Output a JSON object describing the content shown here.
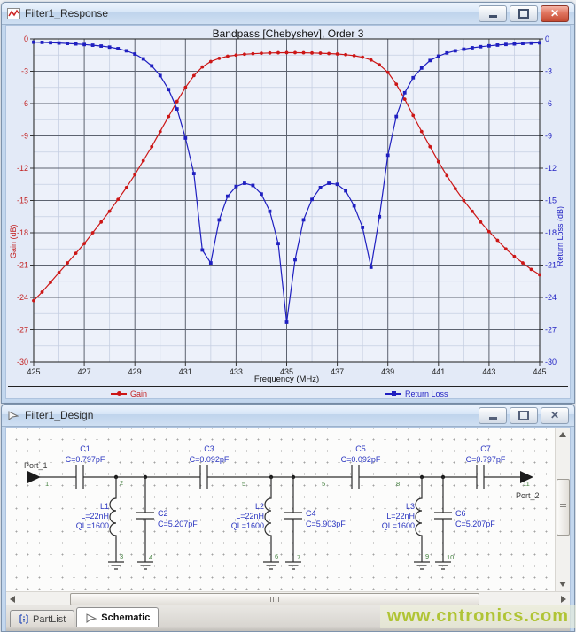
{
  "response_window": {
    "title": "Filter1_Response",
    "icon": "line-chart-icon"
  },
  "design_window": {
    "title": "Filter1_Design",
    "icon": "cursor-arrow-icon",
    "tabs": [
      {
        "label": "PartList",
        "icon": "list-icon",
        "active": false
      },
      {
        "label": "Schematic",
        "icon": "cursor-arrow-icon",
        "active": true
      }
    ],
    "parts": {
      "port1": {
        "label": "Port_1"
      },
      "port2": {
        "label": "Port_2"
      },
      "C1": {
        "ref": "C1",
        "value": "C=0.797pF"
      },
      "C3": {
        "ref": "C3",
        "value": "C=0.092pF"
      },
      "C5": {
        "ref": "C5",
        "value": "C=0.092pF"
      },
      "C7": {
        "ref": "C7",
        "value": "C=0.797pF"
      },
      "L1": {
        "ref": "L1",
        "l": "L=22nH",
        "ql": "QL=1600"
      },
      "L2": {
        "ref": "L2",
        "l": "L=22nH",
        "ql": "QL=1600"
      },
      "L3": {
        "ref": "L3",
        "l": "L=22nH",
        "ql": "QL=1600"
      },
      "C2": {
        "ref": "C2",
        "value": "C=5.207pF"
      },
      "C4": {
        "ref": "C4",
        "value": "C=5.903pF"
      },
      "C6": {
        "ref": "C6",
        "value": "C=5.207pF"
      }
    },
    "nodes": {
      "n1": "1",
      "n2": "2",
      "n3": "3",
      "n4": "4",
      "n5a": "5",
      "n5b": "5",
      "n6": "6",
      "n7": "7",
      "n8": "8",
      "n9": "9",
      "n10": "10",
      "n11": "11"
    }
  },
  "watermark": "www.cntronics.com",
  "chart_data": {
    "type": "line",
    "title": "Bandpass [Chebyshev], Order 3",
    "xlabel": "Frequency (MHz)",
    "ylabel_left": "Gain (dB)",
    "ylabel_right": "Return Loss (dB)",
    "xlim": [
      425,
      445
    ],
    "ylim": [
      -30,
      0
    ],
    "x_major_step": 2,
    "x_minor_step": 1,
    "y_major_step": 3,
    "y_minor_step": 1.5,
    "grid": true,
    "legend_position": "bottom",
    "axis_colors": {
      "left": "#c32222",
      "right": "#2222c3",
      "x": "#222222"
    },
    "x_unit": "MHz",
    "x_start": 425,
    "x_step": 0.3333333,
    "series": [
      {
        "name": "Gain",
        "axis": "left",
        "color": "#cc1616",
        "marker": "circle",
        "y": [
          -24.3,
          -23.5,
          -22.6,
          -21.7,
          -20.8,
          -19.9,
          -19.0,
          -18.0,
          -17.0,
          -16.0,
          -14.9,
          -13.8,
          -12.6,
          -11.3,
          -10.0,
          -8.6,
          -7.2,
          -5.8,
          -4.5,
          -3.4,
          -2.6,
          -2.1,
          -1.8,
          -1.6,
          -1.5,
          -1.42,
          -1.37,
          -1.33,
          -1.3,
          -1.28,
          -1.27,
          -1.27,
          -1.28,
          -1.3,
          -1.32,
          -1.36,
          -1.4,
          -1.46,
          -1.55,
          -1.7,
          -1.95,
          -2.4,
          -3.1,
          -4.2,
          -5.6,
          -7.1,
          -8.6,
          -10.0,
          -11.4,
          -12.7,
          -13.9,
          -15.0,
          -16.0,
          -17.0,
          -17.9,
          -18.7,
          -19.5,
          -20.2,
          -20.8,
          -21.4,
          -21.9
        ]
      },
      {
        "name": "Return Loss",
        "axis": "right",
        "color": "#1f1fc0",
        "marker": "square",
        "y": [
          -0.3,
          -0.32,
          -0.35,
          -0.38,
          -0.42,
          -0.46,
          -0.52,
          -0.58,
          -0.66,
          -0.76,
          -0.9,
          -1.1,
          -1.4,
          -1.85,
          -2.5,
          -3.4,
          -4.7,
          -6.5,
          -9.2,
          -12.5,
          -19.6,
          -20.8,
          -16.8,
          -14.6,
          -13.7,
          -13.4,
          -13.6,
          -14.4,
          -16.0,
          -19.0,
          -26.3,
          -20.5,
          -16.8,
          -14.9,
          -13.8,
          -13.4,
          -13.5,
          -14.1,
          -15.5,
          -17.5,
          -21.2,
          -16.5,
          -10.8,
          -7.2,
          -5.0,
          -3.6,
          -2.7,
          -2.0,
          -1.6,
          -1.3,
          -1.1,
          -0.95,
          -0.82,
          -0.72,
          -0.64,
          -0.57,
          -0.51,
          -0.46,
          -0.42,
          -0.39,
          -0.36
        ]
      }
    ]
  }
}
